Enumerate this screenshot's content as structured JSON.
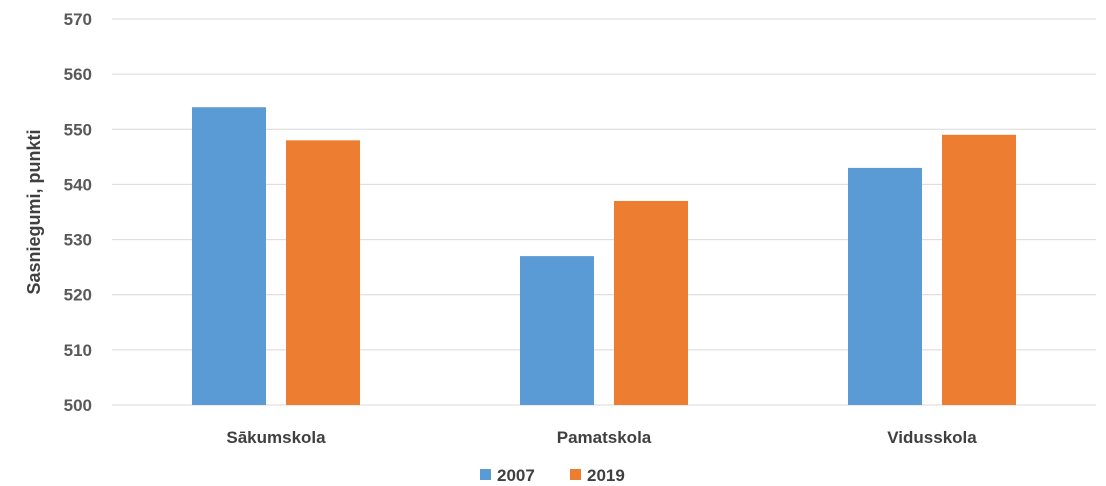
{
  "chart_data": {
    "type": "bar",
    "title": "",
    "xlabel": "",
    "ylabel": "Sasniegumi, punkti",
    "ylim": [
      500,
      570
    ],
    "yticks": [
      "500",
      "510",
      "520",
      "530",
      "540",
      "550",
      "560",
      "570"
    ],
    "grid": true,
    "legend_position": "bottom",
    "categories": [
      "Sākumskola",
      "Pamatskola",
      "Vidusskola"
    ],
    "series": [
      {
        "name": "2007",
        "color": "#5b9bd5",
        "values": [
          554,
          527,
          543
        ]
      },
      {
        "name": "2019",
        "color": "#ed7d31",
        "values": [
          548,
          537,
          549
        ]
      }
    ]
  }
}
